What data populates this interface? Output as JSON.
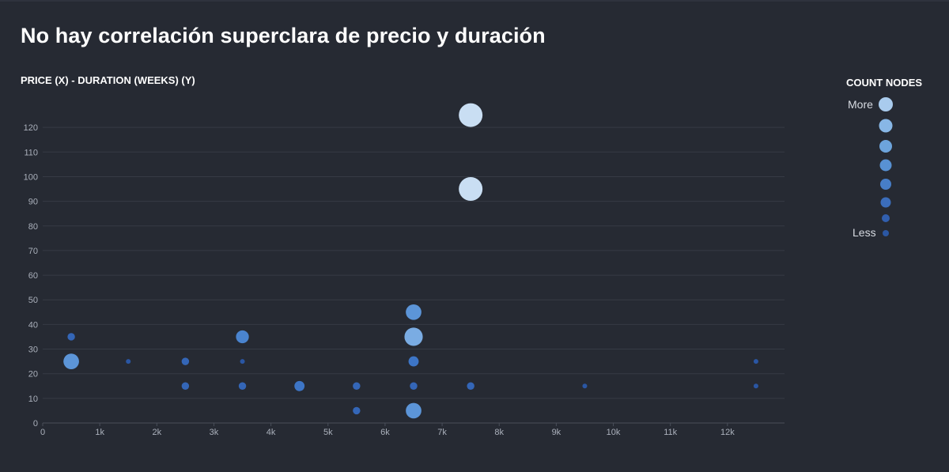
{
  "page": {
    "title": "No hay correlación superclara de precio y duración"
  },
  "legend": {
    "title": "COUNT NODES",
    "more_label": "More",
    "less_label": "Less",
    "swatches": [
      {
        "color": "#a9cbed"
      },
      {
        "color": "#88b7e6"
      },
      {
        "color": "#6da4dc"
      },
      {
        "color": "#5891d3"
      },
      {
        "color": "#477ec8"
      },
      {
        "color": "#3b6dbb"
      },
      {
        "color": "#315faf"
      },
      {
        "color": "#2b57a3"
      }
    ]
  },
  "chart_data": {
    "type": "scatter",
    "title": "PRICE (X) - DURATION (WEEKS) (Y)",
    "xlabel": "",
    "ylabel": "",
    "xlim": [
      0,
      13000
    ],
    "ylim": [
      0,
      130
    ],
    "x_ticks": [
      {
        "value": 0,
        "label": "0"
      },
      {
        "value": 1000,
        "label": "1k"
      },
      {
        "value": 2000,
        "label": "2k"
      },
      {
        "value": 3000,
        "label": "3k"
      },
      {
        "value": 4000,
        "label": "4k"
      },
      {
        "value": 5000,
        "label": "5k"
      },
      {
        "value": 6000,
        "label": "6k"
      },
      {
        "value": 7000,
        "label": "7k"
      },
      {
        "value": 8000,
        "label": "8k"
      },
      {
        "value": 9000,
        "label": "9k"
      },
      {
        "value": 10000,
        "label": "10k"
      },
      {
        "value": 11000,
        "label": "11k"
      },
      {
        "value": 12000,
        "label": "12k"
      }
    ],
    "y_ticks": [
      {
        "value": 0,
        "label": "0"
      },
      {
        "value": 10,
        "label": "10"
      },
      {
        "value": 20,
        "label": "20"
      },
      {
        "value": 30,
        "label": "30"
      },
      {
        "value": 40,
        "label": "40"
      },
      {
        "value": 50,
        "label": "50"
      },
      {
        "value": 60,
        "label": "60"
      },
      {
        "value": 70,
        "label": "70"
      },
      {
        "value": 80,
        "label": "80"
      },
      {
        "value": 90,
        "label": "90"
      },
      {
        "value": 100,
        "label": "100"
      },
      {
        "value": 110,
        "label": "110"
      },
      {
        "value": 120,
        "label": "120"
      }
    ],
    "grid": true,
    "legend_position": "right",
    "size_encoding": "count nodes",
    "count_range": [
      1,
      8
    ],
    "points": [
      {
        "x": 500,
        "y": 35,
        "count": 2
      },
      {
        "x": 500,
        "y": 25,
        "count": 5
      },
      {
        "x": 1500,
        "y": 25,
        "count": 1
      },
      {
        "x": 2500,
        "y": 25,
        "count": 2
      },
      {
        "x": 2500,
        "y": 15,
        "count": 2
      },
      {
        "x": 3500,
        "y": 35,
        "count": 4
      },
      {
        "x": 3500,
        "y": 25,
        "count": 1
      },
      {
        "x": 3500,
        "y": 15,
        "count": 2
      },
      {
        "x": 4500,
        "y": 15,
        "count": 3
      },
      {
        "x": 5500,
        "y": 15,
        "count": 2
      },
      {
        "x": 5500,
        "y": 5,
        "count": 2
      },
      {
        "x": 6500,
        "y": 45,
        "count": 5
      },
      {
        "x": 6500,
        "y": 35,
        "count": 6
      },
      {
        "x": 6500,
        "y": 25,
        "count": 3
      },
      {
        "x": 6500,
        "y": 15,
        "count": 2
      },
      {
        "x": 6500,
        "y": 5,
        "count": 5
      },
      {
        "x": 7500,
        "y": 125,
        "count": 8
      },
      {
        "x": 7500,
        "y": 95,
        "count": 8
      },
      {
        "x": 7500,
        "y": 15,
        "count": 2
      },
      {
        "x": 9500,
        "y": 15,
        "count": 1
      },
      {
        "x": 12500,
        "y": 25,
        "count": 1
      },
      {
        "x": 12500,
        "y": 15,
        "count": 1
      }
    ]
  }
}
